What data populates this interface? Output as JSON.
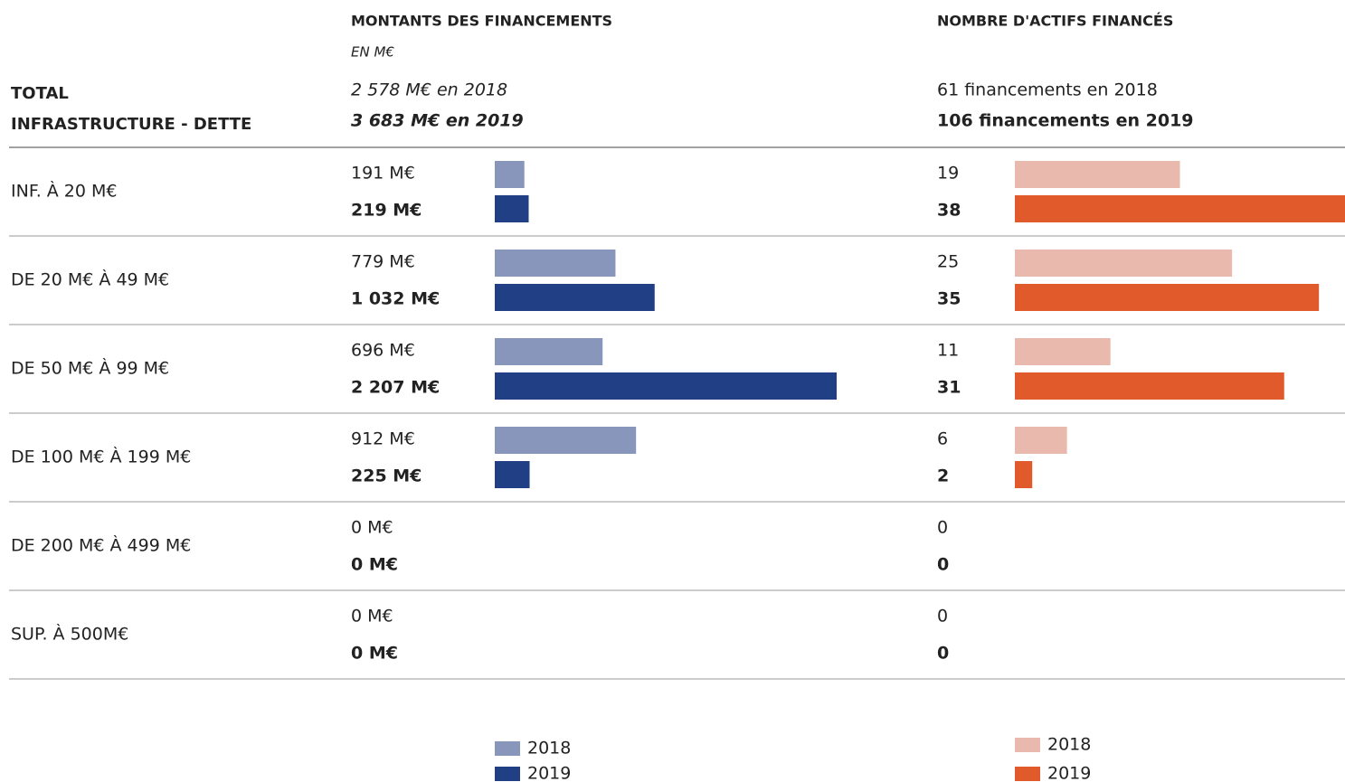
{
  "row_header": [
    "TOTAL",
    "INFRASTRUCTURE - DETTE"
  ],
  "chart_data": [
    {
      "type": "bar",
      "orientation": "horizontal",
      "title": "MONTANTS DES FINANCEMENTS",
      "subtitle": "EN M€",
      "totals": [
        "2 578 M€ en 2018",
        "3 683 M€ en 2019"
      ],
      "categories": [
        "INF. À 20 M€",
        "DE 20 M€ À 49 M€",
        "DE 50 M€ À 99 M€",
        "DE 100 M€ À 199 M€",
        "DE 200 M€ À 499 M€",
        "SUP. À 500M€"
      ],
      "series": [
        {
          "name": "2018",
          "color": "#8896bb",
          "values": [
            191,
            779,
            696,
            912,
            0,
            0
          ],
          "value_labels": [
            "191 M€",
            "779 M€",
            "696 M€",
            "912 M€",
            "0 M€",
            "0 M€"
          ]
        },
        {
          "name": "2019",
          "color": "#213f84",
          "values": [
            219,
            1032,
            2207,
            225,
            0,
            0
          ],
          "value_labels": [
            "219 M€",
            "1 032 M€",
            "2 207 M€",
            "225 M€",
            "0 M€",
            "0 M€"
          ]
        }
      ]
    },
    {
      "type": "bar",
      "orientation": "horizontal",
      "title": "NOMBRE D'ACTIFS FINANCÉS",
      "totals": [
        "61 financements en 2018",
        "106 financements en 2019"
      ],
      "series": [
        {
          "name": "2018",
          "color": "#e8b9ac",
          "values": [
            19,
            25,
            11,
            6,
            0,
            0
          ]
        },
        {
          "name": "2019",
          "color": "#e05a2b",
          "values": [
            38,
            35,
            31,
            2,
            0,
            0
          ]
        }
      ]
    }
  ]
}
